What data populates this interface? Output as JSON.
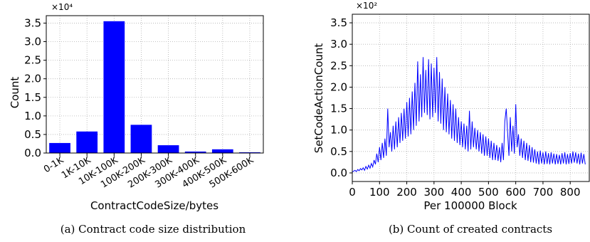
{
  "figure": {
    "caption_a": "(a) Contract code size distribution",
    "caption_b": "(b) Count of created contracts"
  },
  "chart_data": [
    {
      "type": "bar",
      "categories": [
        "0-1K",
        "1K-10K",
        "10K-100K",
        "100K-200K",
        "200K-300K",
        "300K-400K",
        "400K-500K",
        "500K-600K"
      ],
      "values": [
        2700,
        5800,
        35500,
        7600,
        2100,
        400,
        1000,
        200
      ],
      "title": "",
      "xlabel": "ContractCodeSize/bytes",
      "ylabel": "Count",
      "ylim": [
        0,
        37000
      ],
      "yticks": [
        "0.0",
        "0.5",
        "1.0",
        "1.5",
        "2.0",
        "2.5",
        "3.0",
        "3.5"
      ],
      "ytick_values": [
        0,
        5000,
        10000,
        15000,
        20000,
        25000,
        30000,
        35000
      ],
      "scale_label": "×10⁴",
      "bar_color": "#0000ff",
      "grid": true
    },
    {
      "type": "line",
      "title": "",
      "xlabel": "Per 100000 Block",
      "ylabel": "SetCodeActionCount",
      "xlim": [
        0,
        870
      ],
      "ylim": [
        -20,
        370
      ],
      "xticks": [
        "0",
        "100",
        "200",
        "300",
        "400",
        "500",
        "600",
        "700",
        "800"
      ],
      "xtick_values": [
        0,
        100,
        200,
        300,
        400,
        500,
        600,
        700,
        800
      ],
      "yticks": [
        "0.0",
        "0.5",
        "1.0",
        "1.5",
        "2.0",
        "2.5",
        "3.0",
        "3.5"
      ],
      "ytick_values": [
        0,
        50,
        100,
        150,
        200,
        250,
        300,
        350
      ],
      "scale_label": "×10²",
      "line_color": "#0000ff",
      "grid": true,
      "series": [
        {
          "x_start": 0,
          "x_step": 5,
          "values": [
            2,
            4,
            6,
            3,
            8,
            5,
            10,
            7,
            12,
            6,
            15,
            9,
            18,
            11,
            22,
            14,
            30,
            20,
            45,
            25,
            60,
            30,
            70,
            35,
            80,
            40,
            150,
            60,
            95,
            50,
            110,
            55,
            120,
            60,
            130,
            70,
            140,
            75,
            150,
            80,
            165,
            85,
            175,
            90,
            190,
            100,
            210,
            110,
            260,
            120,
            230,
            130,
            270,
            140,
            240,
            135,
            265,
            125,
            255,
            130,
            245,
            140,
            270,
            120,
            235,
            115,
            220,
            100,
            200,
            95,
            185,
            90,
            170,
            80,
            160,
            75,
            150,
            70,
            130,
            65,
            120,
            60,
            115,
            55,
            110,
            50,
            145,
            55,
            120,
            60,
            105,
            55,
            100,
            50,
            95,
            45,
            90,
            40,
            85,
            40,
            80,
            35,
            75,
            30,
            70,
            30,
            65,
            28,
            60,
            25,
            70,
            30,
            120,
            150,
            95,
            40,
            130,
            50,
            110,
            45,
            160,
            60,
            90,
            40,
            80,
            35,
            75,
            30,
            70,
            28,
            65,
            25,
            60,
            24,
            55,
            22,
            50,
            20,
            52,
            22,
            48,
            20,
            50,
            21,
            46,
            20,
            48,
            22,
            45,
            20,
            44,
            21,
            42,
            20,
            46,
            22,
            48,
            20,
            44,
            21,
            46,
            22,
            50,
            24,
            48,
            22,
            45,
            20,
            47,
            22,
            44,
            20
          ]
        }
      ]
    }
  ]
}
